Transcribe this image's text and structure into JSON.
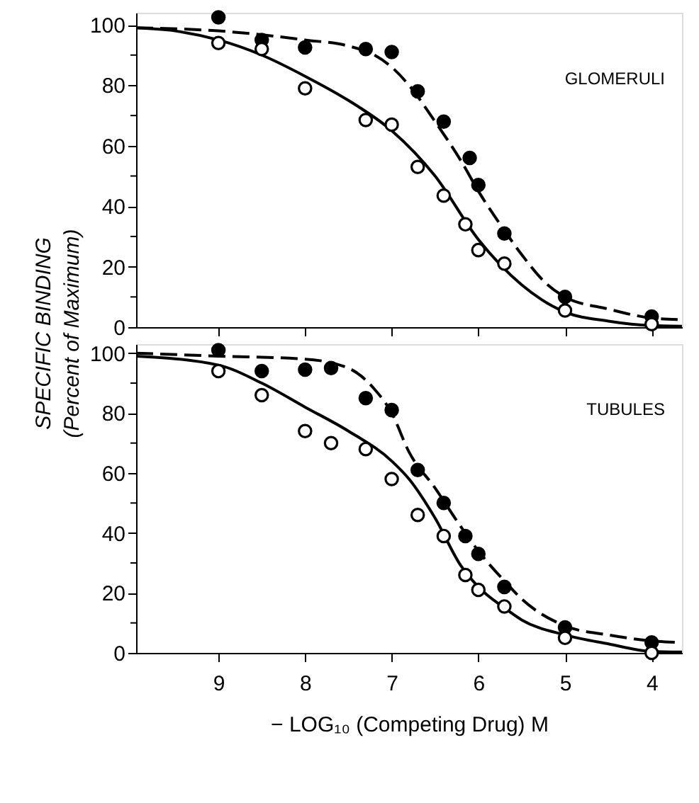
{
  "chart_data": [
    {
      "type": "scatter",
      "ylabel": "SPECIFIC BINDING\n(Percent of Maximum)",
      "annotations": [
        "GLOMERULI"
      ],
      "xlim": [
        9.95,
        3.65
      ],
      "ylim": [
        0,
        104
      ],
      "xticks": [
        9,
        8,
        7,
        6,
        5,
        4
      ],
      "yticks": [
        0,
        {
          "value": 10,
          "label": null
        },
        20,
        {
          "value": 30,
          "label": null
        },
        40,
        {
          "value": 50,
          "label": null
        },
        60,
        {
          "value": 70,
          "label": null
        },
        80,
        {
          "value": 90,
          "label": null
        },
        100
      ],
      "tick_labels": "y",
      "grid": false,
      "marker": "circle",
      "series": [
        {
          "type": "line",
          "line_style": "solid",
          "color": "#000000",
          "marker": "none",
          "x": [
            9.95,
            9.5,
            9,
            8.5,
            8,
            7.5,
            7,
            6.5,
            6,
            5.5,
            5,
            4.5,
            4,
            3.65
          ],
          "values": [
            99,
            98,
            95,
            90,
            83,
            75,
            65,
            50,
            29,
            14,
            5,
            2,
            0.5,
            0.3
          ]
        },
        {
          "type": "line",
          "line_style": "dashed",
          "color": "#000000",
          "marker": "none",
          "x": [
            9.95,
            9,
            8,
            7.5,
            7.2,
            7,
            6.8,
            6.5,
            6.2,
            6,
            5.7,
            5.5,
            5.2,
            5,
            4.5,
            4,
            3.7
          ],
          "values": [
            99,
            98,
            95,
            93,
            90,
            86,
            80,
            68,
            55,
            45,
            32,
            24,
            14,
            10,
            6,
            3,
            2.5
          ]
        },
        {
          "type": "scatter",
          "color": "#000000",
          "x": [
            9,
            8.5,
            8,
            7.3,
            7,
            6.7,
            6.4,
            6.1,
            6,
            5.7,
            5,
            4
          ],
          "values": [
            102.5,
            95,
            92.5,
            92,
            91,
            78,
            68,
            56,
            47,
            31,
            10,
            3.5
          ]
        },
        {
          "type": "scatter",
          "color": "#ffffff",
          "x": [
            9,
            8.5,
            8,
            7.3,
            7,
            6.7,
            6.4,
            6.15,
            6,
            5.7,
            5,
            4
          ],
          "values": [
            94,
            92,
            79,
            68.5,
            67,
            53,
            43.5,
            34,
            25.5,
            21,
            5.5,
            1
          ]
        }
      ]
    },
    {
      "type": "scatter",
      "xlabel": "− LOG₁₀ (Competing Drug) M",
      "annotations": [
        "TUBULES"
      ],
      "xlim": [
        9.95,
        3.65
      ],
      "ylim": [
        0,
        103
      ],
      "xticks": [
        9,
        8,
        7,
        6,
        5,
        4
      ],
      "yticks": [
        0,
        {
          "value": 10,
          "label": null
        },
        20,
        {
          "value": 30,
          "label": null
        },
        40,
        {
          "value": 50,
          "label": null
        },
        60,
        {
          "value": 70,
          "label": null
        },
        80,
        {
          "value": 90,
          "label": null
        },
        100
      ],
      "grid": false,
      "marker": "circle",
      "series": [
        {
          "type": "line",
          "line_style": "solid",
          "color": "#000000",
          "marker": "none",
          "x": [
            9.95,
            9,
            8.5,
            8,
            7.5,
            7,
            6.8,
            6.5,
            6.2,
            6,
            5.7,
            5.5,
            5,
            4.5,
            4,
            3.65
          ],
          "values": [
            99,
            96,
            90,
            82,
            74,
            64,
            58,
            45,
            29,
            22,
            15,
            11,
            6,
            3,
            0.5,
            0.3
          ]
        },
        {
          "type": "line",
          "line_style": "dashed",
          "color": "#000000",
          "marker": "none",
          "x": [
            9.95,
            9,
            8,
            7.5,
            7.2,
            7,
            6.8,
            6.5,
            6.2,
            6,
            5.7,
            5.5,
            5,
            4.5,
            4,
            3.7
          ],
          "values": [
            100,
            99,
            98,
            95,
            88,
            80,
            67,
            55,
            42,
            34,
            24,
            18,
            9,
            6,
            4,
            3.5
          ]
        },
        {
          "type": "scatter",
          "color": "#000000",
          "x": [
            9,
            8.5,
            8,
            7.7,
            7.3,
            7,
            6.7,
            6.4,
            6.15,
            6,
            5.7,
            5,
            4
          ],
          "values": [
            101,
            94,
            94.5,
            95,
            85,
            81,
            61,
            50,
            39,
            33,
            22,
            8.5,
            3.5
          ]
        },
        {
          "type": "scatter",
          "color": "#ffffff",
          "x": [
            9,
            8.5,
            8,
            7.7,
            7.3,
            7,
            6.7,
            6.4,
            6.15,
            6,
            5.7,
            5,
            4
          ],
          "values": [
            94,
            86,
            74,
            70,
            68,
            58,
            46,
            39,
            26,
            21,
            15.5,
            5,
            0
          ]
        }
      ]
    }
  ]
}
